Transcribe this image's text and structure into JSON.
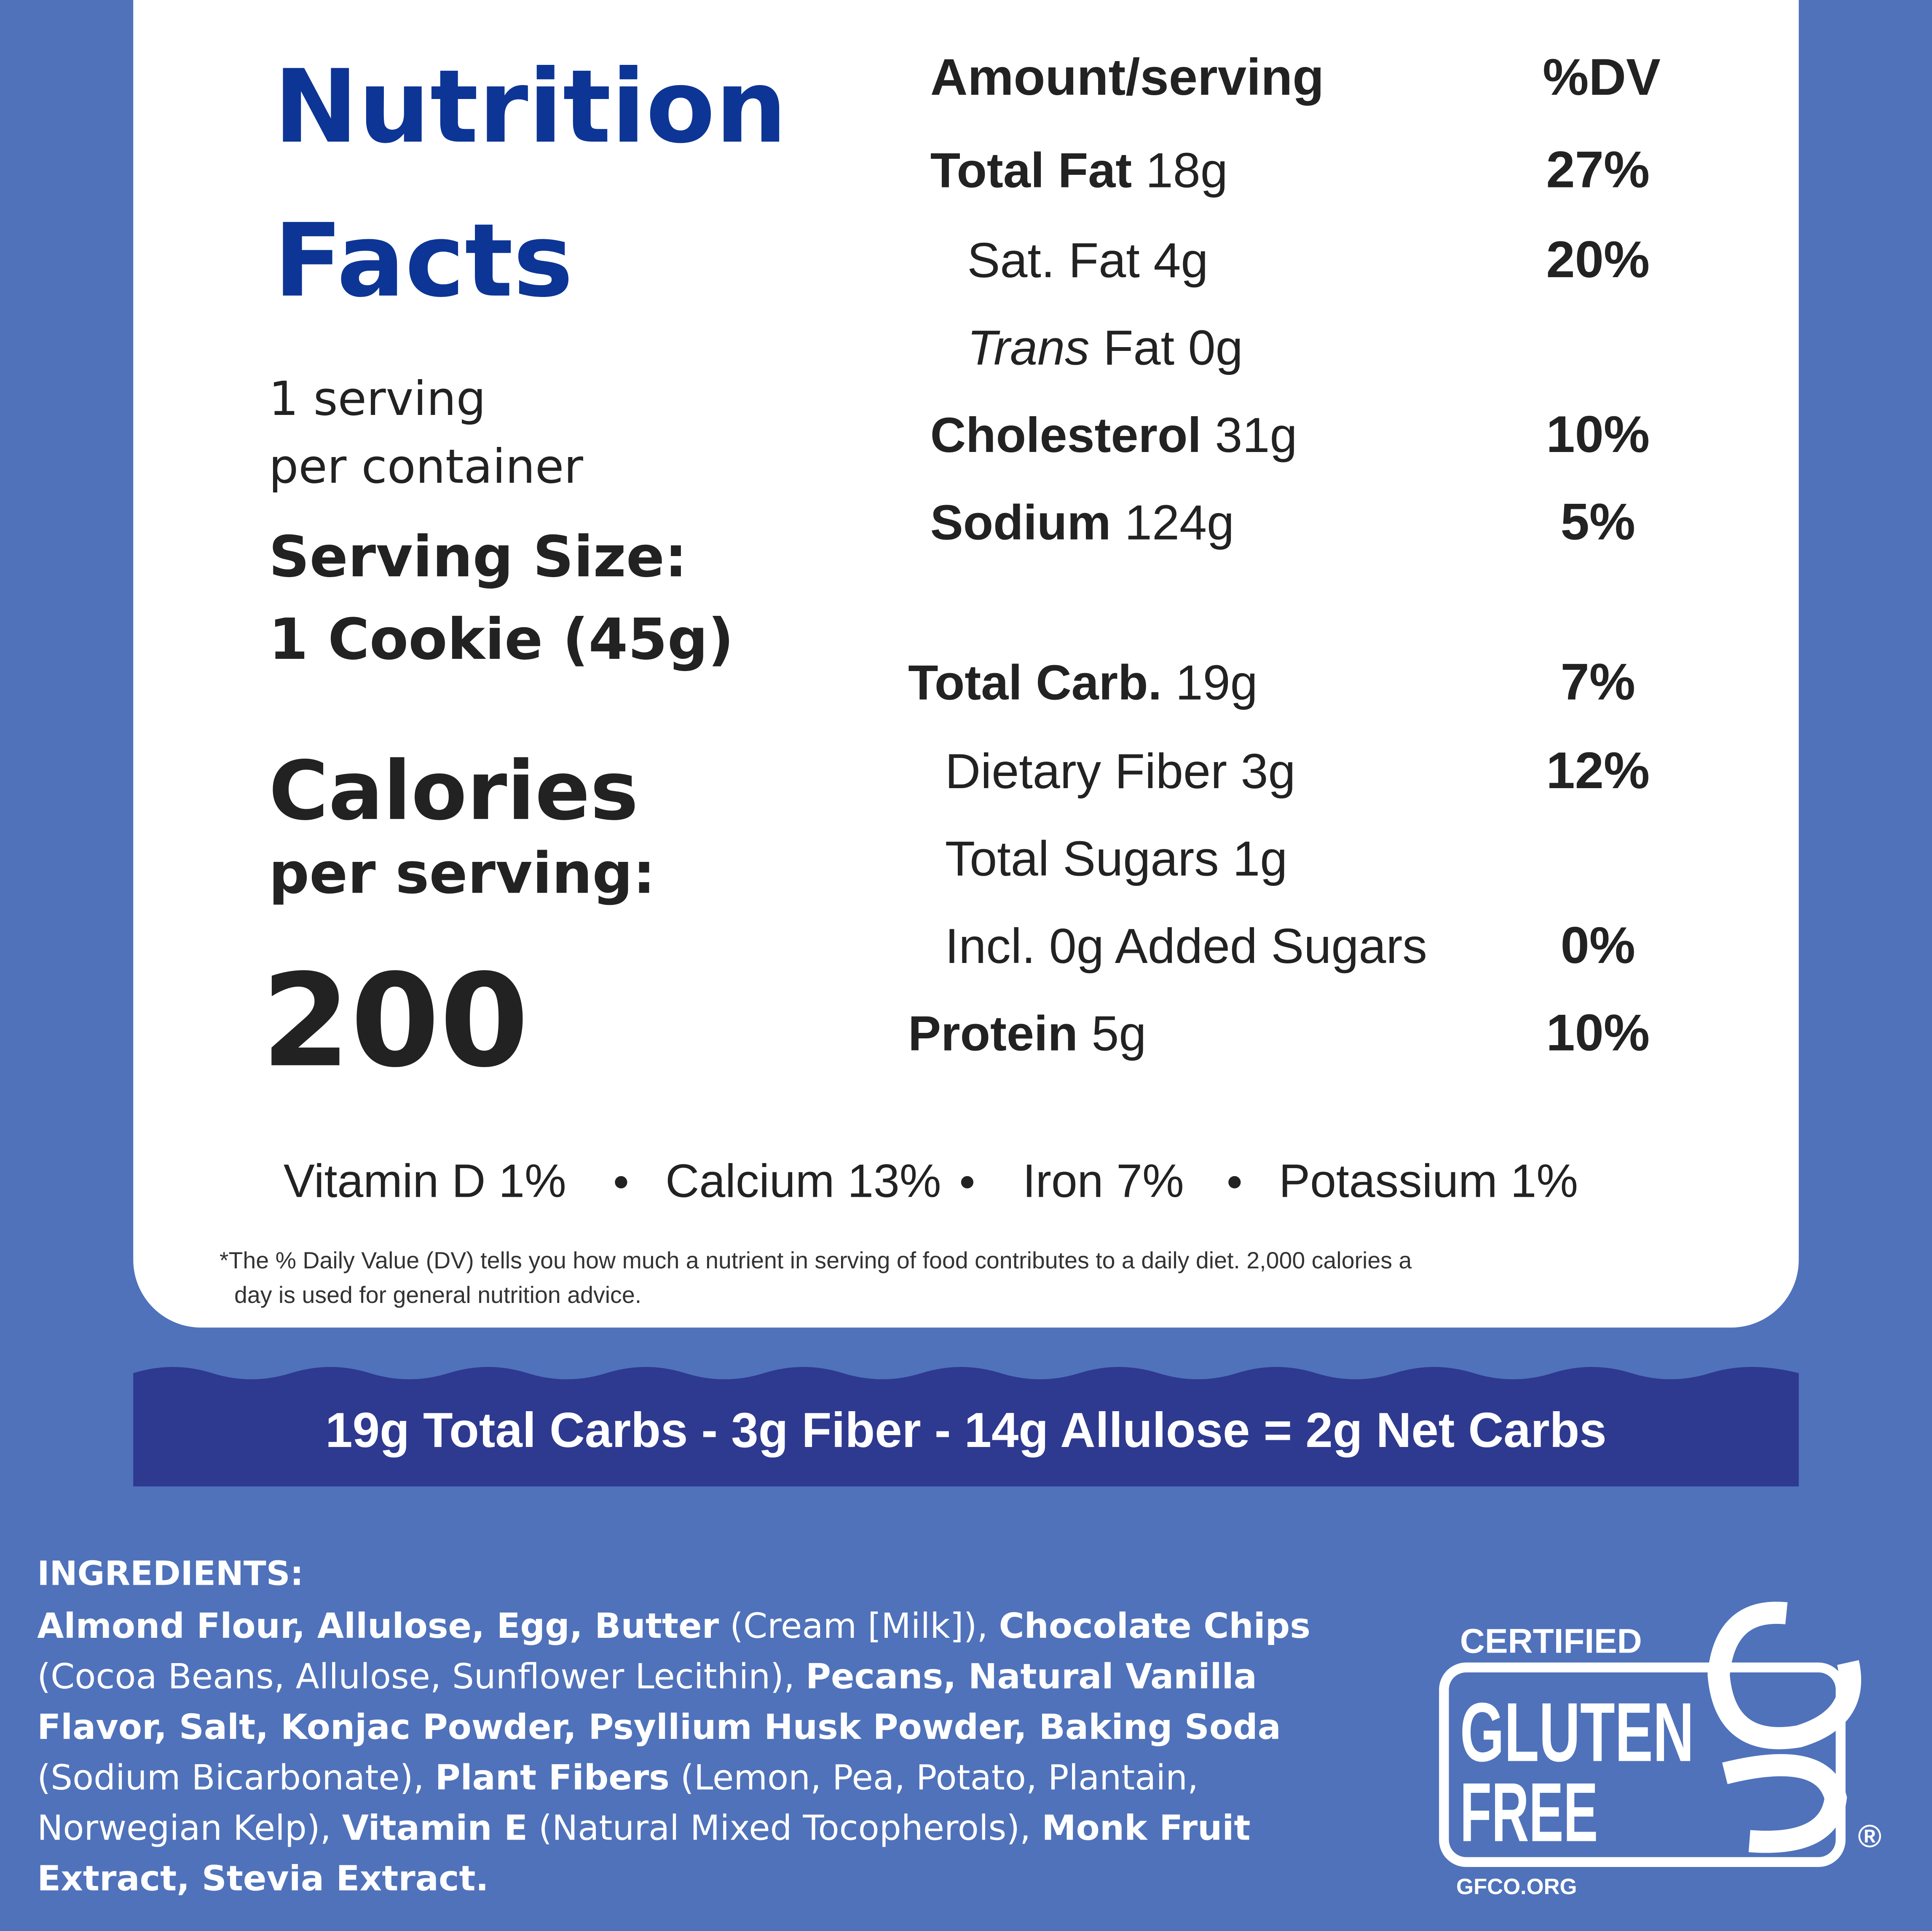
{
  "header": {
    "title_lines": [
      "Nutrition",
      "Facts"
    ]
  },
  "servings": [
    "1 serving",
    "per container"
  ],
  "serving_size": [
    "Serving Size:",
    "1 Cookie (45g)"
  ],
  "calories": {
    "label": "Calories",
    "sublabel": "per serving:",
    "value": 200
  },
  "table": {
    "header": [
      "Amount/serving",
      "%DV"
    ],
    "rows": [
      {
        "name": "Total Fat",
        "amount": "18g",
        "dv": "27%"
      },
      {
        "name": "Sat. Fat",
        "amount": "4g",
        "dv": "20%"
      },
      {
        "name_italic": "Trans",
        "name": "Fat",
        "amount": "0g"
      },
      {
        "name": "Cholesterol",
        "amount": "31g",
        "dv": "10%"
      },
      {
        "name": "Sodium",
        "amount": "124g",
        "dv": "5%"
      },
      {
        "name": "Total Carb.",
        "amount": "19g",
        "dv": "7%"
      },
      {
        "name": "Dietary Fiber",
        "amount": "3g",
        "dv": "12%"
      },
      {
        "name": "Total Sugars",
        "amount": "1g"
      },
      {
        "name": "Incl. 0g Added Sugars",
        "dv": "0%"
      },
      {
        "name": "Protein",
        "amount": "5g",
        "dv": "10%"
      }
    ]
  },
  "vitamins": [
    "Vitamin D 1%",
    "Calcium 13%",
    "Iron 7%",
    "Potassium 1%"
  ],
  "footnote": [
    "*The % Daily Value (DV) tells you how much a nutrient in serving of food contributes to a daily diet. 2,000 calories a",
    "day is used for general nutrition advice."
  ],
  "banner": "19g  Total Carbs  -  3g Fiber -  14g Allulose = 2g Net Carbs",
  "ingredients": {
    "heading": "INGREDIENTS:",
    "lines": [
      [
        {
          "bold": "Almond Flour, Allulose, Egg, Butter"
        },
        {
          "regular": " (Cream [Milk]), "
        },
        {
          "bold": "Chocolate Chips"
        }
      ],
      [
        {
          "regular": "(Cocoa Beans, Allulose, Sunflower Lecithin), "
        },
        {
          "bold": "Pecans, Natural Vanilla"
        }
      ],
      [
        {
          "bold": "Flavor, Salt, Konjac Powder, Psyllium Husk Powder, Baking Soda"
        }
      ],
      [
        {
          "regular": "(Sodium Bicarbonate), "
        },
        {
          "bold": "Plant Fibers"
        },
        {
          "regular": " (Lemon, Pea, Potato, Plantain,"
        }
      ],
      [
        {
          "regular": "Norwegian Kelp), "
        },
        {
          "bold": "Vitamin E"
        },
        {
          "regular": " (Natural Mixed Tocopherols), "
        },
        {
          "bold": "Monk Fruit"
        }
      ],
      [
        {
          "bold": "Extract, Stevia Extract."
        }
      ]
    ]
  },
  "badge": {
    "certified": "CERTIFIED",
    "gluten": "GLUTEN",
    "free": "FREE",
    "registered": "®",
    "url": "GFCO.ORG"
  }
}
